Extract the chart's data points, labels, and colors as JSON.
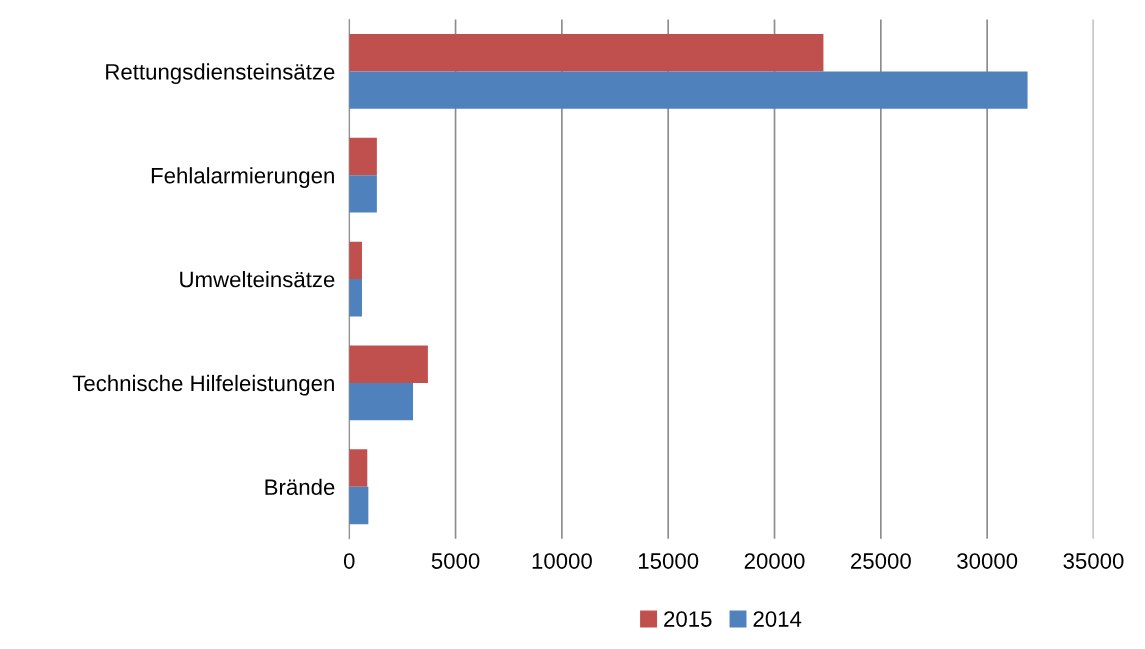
{
  "chart_data": {
    "type": "bar",
    "orientation": "horizontal",
    "categories": [
      "Rettungsdiensteinsätze",
      "Fehlalarmierungen",
      "Umwelteinsätze",
      "Technische Hilfeleistungen",
      "Brände"
    ],
    "series": [
      {
        "name": "2015",
        "color": "#c0504d",
        "values": [
          22300,
          1300,
          600,
          3700,
          850
        ]
      },
      {
        "name": "2014",
        "color": "#4f81bd",
        "values": [
          31900,
          1300,
          600,
          3000,
          900
        ]
      }
    ],
    "xlim": [
      0,
      35000
    ],
    "xticks": [
      0,
      5000,
      10000,
      15000,
      20000,
      25000,
      30000,
      35000
    ],
    "grid": "x",
    "legend": "bottom"
  }
}
